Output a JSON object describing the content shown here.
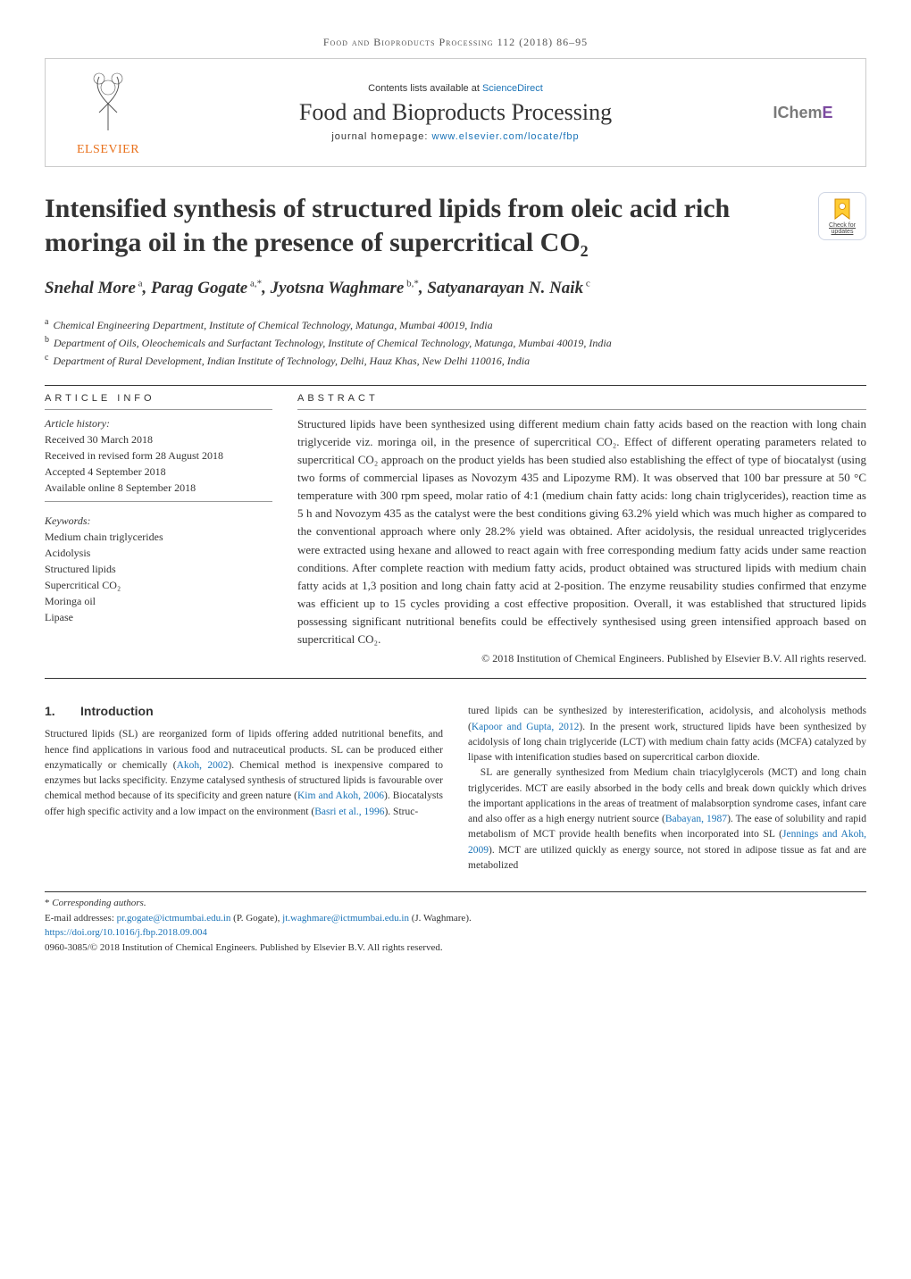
{
  "running_head": "Food and Bioproducts Processing 112 (2018) 86–95",
  "banner": {
    "contents_prefix": "Contents lists available at ",
    "sciencedirect": "ScienceDirect",
    "journal": "Food and Bioproducts Processing",
    "homepage_prefix": "journal homepage: ",
    "homepage_url": "www.elsevier.com/locate/fbp",
    "elsevier": "ELSEVIER",
    "icheme_left": "IChem",
    "icheme_right": "E"
  },
  "title": "Intensified synthesis of structured lipids from oleic acid rich moringa oil in the presence of supercritical CO₂",
  "check_updates_label": "Check for updates",
  "authors_html": "Snehal More<sup> a</sup>, Parag Gogate<sup> a,*</sup>, Jyotsna Waghmare<sup> b,*</sup>, Satyanarayan N. Naik<sup> c</sup>",
  "affiliations": [
    {
      "sup": "a",
      "text": "Chemical Engineering Department, Institute of Chemical Technology, Matunga, Mumbai 40019, India"
    },
    {
      "sup": "b",
      "text": "Department of Oils, Oleochemicals and Surfactant Technology, Institute of Chemical Technology, Matunga, Mumbai 40019, India"
    },
    {
      "sup": "c",
      "text": "Department of Rural Development, Indian Institute of Technology, Delhi, Hauz Khas, New Delhi 110016, India"
    }
  ],
  "labels": {
    "article_info": "ARTICLE INFO",
    "abstract": "ABSTRACT",
    "history": "Article history:",
    "keywords": "Keywords:"
  },
  "history": [
    "Received 30 March 2018",
    "Received in revised form 28 August 2018",
    "Accepted 4 September 2018",
    "Available online 8 September 2018"
  ],
  "keywords": [
    "Medium chain triglycerides",
    "Acidolysis",
    "Structured lipids",
    "Supercritical CO₂",
    "Moringa oil",
    "Lipase"
  ],
  "abstract": "Structured lipids have been synthesized using different medium chain fatty acids based on the reaction with long chain triglyceride viz. moringa oil, in the presence of supercritical CO₂. Effect of different operating parameters related to supercritical CO₂ approach on the product yields has been studied also establishing the effect of type of biocatalyst (using two forms of commercial lipases as Novozym 435 and Lipozyme RM). It was observed that 100 bar pressure at 50 °C temperature with 300 rpm speed, molar ratio of 4:1 (medium chain fatty acids: long chain triglycerides), reaction time as 5 h and Novozym 435 as the catalyst were the best conditions giving 63.2% yield which was much higher as compared to the conventional approach where only 28.2% yield was obtained. After acidolysis, the residual unreacted triglycerides were extracted using hexane and allowed to react again with free corresponding medium fatty acids under same reaction conditions. After complete reaction with medium fatty acids, product obtained was structured lipids with medium chain fatty acids at 1,3 position and long chain fatty acid at 2-position. The enzyme reusability studies confirmed that enzyme was efficient up to 15 cycles providing a cost effective proposition. Overall, it was established that structured lipids possessing significant nutritional benefits could be effectively synthesised using green intensified approach based on supercritical CO₂.",
  "copyright_abstract": "© 2018 Institution of Chemical Engineers. Published by Elsevier B.V. All rights reserved.",
  "section1": {
    "num": "1.",
    "title": "Introduction"
  },
  "intro_left_html": "Structured lipids (SL) are reorganized form of lipids offering added nutritional benefits, and hence find applications in various food and nutraceutical products. SL can be produced either enzymatically or chemically (<a class='ref' href='#'>Akoh, 2002</a>). Chemical method is inexpensive compared to enzymes but lacks specificity. Enzyme catalysed synthesis of structured lipids is favourable over chemical method because of its specificity and green nature (<a class='ref' href='#'>Kim and Akoh, 2006</a>). Biocatalysts offer high specific activity and a low impact on the environment (<a class='ref' href='#'>Basri et al., 1996</a>). Struc-",
  "intro_right_p1_html": "tured lipids can be synthesized by interesterification, acidolysis, and alcoholysis methods (<a class='ref' href='#'>Kapoor and Gupta, 2012</a>). In the present work, structured lipids have been synthesized by acidolysis of long chain triglyceride (LCT) with medium chain fatty acids (MCFA) catalyzed by lipase with intenification studies based on supercritical carbon dioxide.",
  "intro_right_p2_html": "SL are generally synthesized from Medium chain triacylglycerols (MCT) and long chain triglycerides. MCT are easily absorbed in the body cells and break down quickly which drives the important applications in the areas of treatment of malabsorption syndrome cases, infant care and also offer as a high energy nutrient source (<a class='ref' href='#'>Babayan, 1987</a>). The ease of solubility and rapid metabolism of MCT provide health benefits when incorporated into SL (<a class='ref' href='#'>Jennings and Akoh, 2009</a>). MCT are utilized quickly as energy source, not stored in adipose tissue as fat and are metabolized",
  "footnotes": {
    "corresponding": "Corresponding authors.",
    "email_prefix": "E-mail addresses: ",
    "email1": "pr.gogate@ictmumbai.edu.in",
    "email1_name": " (P. Gogate), ",
    "email2": "jt.waghmare@ictmumbai.edu.in",
    "email2_name": " (J. Waghmare).",
    "doi": "https://doi.org/10.1016/j.fbp.2018.09.004",
    "issn_line": "0960-3085/© 2018 Institution of Chemical Engineers. Published by Elsevier B.V. All rights reserved."
  },
  "colors": {
    "link": "#1a73b7",
    "elsevier_orange": "#e9711c",
    "icheme_purple": "#7c4ba0",
    "bookmark_fill": "#ffcc33"
  }
}
